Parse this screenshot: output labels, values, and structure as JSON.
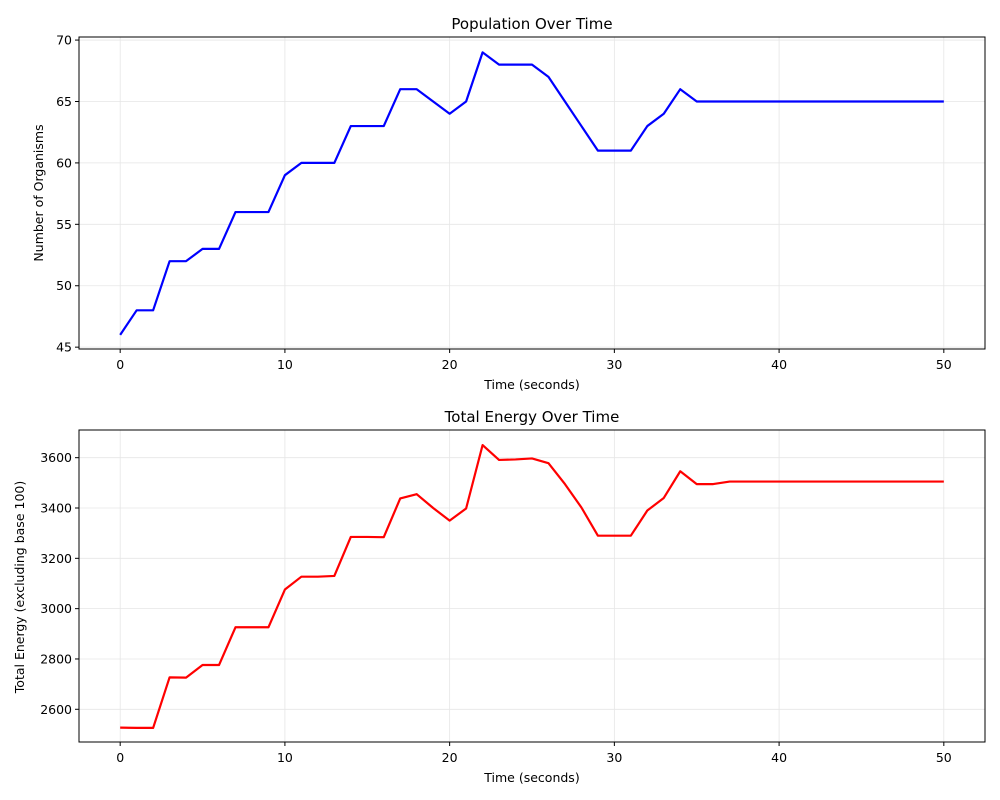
{
  "chart_data": [
    {
      "type": "line",
      "title": "Population Over Time",
      "xlabel": "Time (seconds)",
      "ylabel": "Number of Organisms",
      "xlim": [
        -2.5,
        52.5
      ],
      "ylim": [
        44.85,
        70.25
      ],
      "xticks": [
        0,
        10,
        20,
        30,
        40,
        50
      ],
      "yticks": [
        45,
        50,
        55,
        60,
        65,
        70
      ],
      "grid": true,
      "color": "#0000ff",
      "x": [
        0,
        1,
        2,
        3,
        4,
        5,
        6,
        7,
        8,
        9,
        10,
        11,
        12,
        13,
        14,
        15,
        16,
        17,
        18,
        19,
        20,
        21,
        22,
        23,
        24,
        25,
        26,
        27,
        28,
        29,
        30,
        31,
        32,
        33,
        34,
        35,
        36,
        37,
        38,
        39,
        40,
        41,
        42,
        43,
        44,
        45,
        46,
        47,
        48,
        49,
        50
      ],
      "y": [
        46,
        48,
        48,
        52,
        52,
        53,
        53,
        56,
        56,
        56,
        59,
        60,
        60,
        60,
        63,
        63,
        63,
        66,
        66,
        65,
        64,
        65,
        69,
        68,
        68,
        68,
        67,
        65,
        63,
        61,
        61,
        61,
        63,
        64,
        66,
        65,
        65,
        65,
        65,
        65,
        65,
        65,
        65,
        65,
        65,
        65,
        65,
        65,
        65,
        65,
        65
      ]
    },
    {
      "type": "line",
      "title": "Total Energy Over Time",
      "xlabel": "Time (seconds)",
      "ylabel": "Total Energy (excluding base 100)",
      "xlim": [
        -2.5,
        52.5
      ],
      "ylim": [
        2470,
        3710
      ],
      "xticks": [
        0,
        10,
        20,
        30,
        40,
        50
      ],
      "yticks": [
        2600,
        2800,
        3000,
        3200,
        3400,
        3600
      ],
      "grid": true,
      "color": "#ff0000",
      "x": [
        0,
        1,
        2,
        3,
        4,
        5,
        6,
        7,
        8,
        9,
        10,
        11,
        12,
        13,
        14,
        15,
        16,
        17,
        18,
        19,
        20,
        21,
        22,
        23,
        24,
        25,
        26,
        27,
        28,
        29,
        30,
        31,
        32,
        33,
        34,
        35,
        36,
        37,
        38,
        39,
        40,
        41,
        42,
        43,
        44,
        45,
        46,
        47,
        48,
        49,
        50
      ],
      "y": [
        2527,
        2526,
        2526,
        2727,
        2726,
        2776,
        2776,
        2926,
        2926,
        2926,
        3076,
        3127,
        3127,
        3130,
        3285,
        3285,
        3284,
        3438,
        3455,
        3400,
        3350,
        3398,
        3650,
        3591,
        3593,
        3597,
        3578,
        3495,
        3402,
        3290,
        3290,
        3290,
        3390,
        3440,
        3546,
        3495,
        3495,
        3505,
        3505,
        3505,
        3505,
        3505,
        3505,
        3505,
        3505,
        3505,
        3505,
        3505,
        3505,
        3505,
        3505
      ]
    }
  ]
}
